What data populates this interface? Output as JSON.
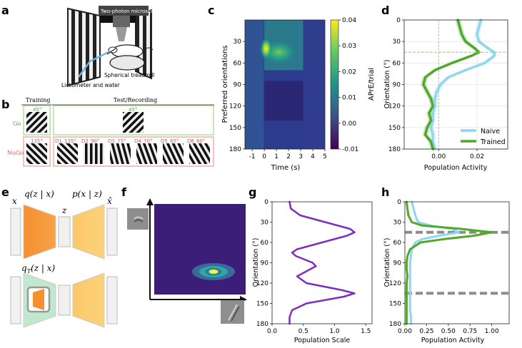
{
  "panel_labels": {
    "a": "a",
    "b": "b",
    "c": "c",
    "d": "d",
    "e": "e",
    "f": "f",
    "g": "g",
    "h": "h"
  },
  "panel_a": {
    "microscope_label": "Two-photon microscope",
    "lickometer_label": "Lickometer and water",
    "treadmill_label": "Spherical treadmill"
  },
  "panel_b": {
    "training_label": "Training",
    "test_label": "Test/Recording",
    "go_label": "Go",
    "nogo_label": "NoGo",
    "go_training_angle": "45°",
    "go_test_angle": "45°",
    "nogo_training_angle": "135°",
    "nogo_tests": [
      {
        "name": "D1",
        "angle": "135°"
      },
      {
        "name": "D2",
        "angle": "90°"
      },
      {
        "name": "D3",
        "angle": "75°"
      },
      {
        "name": "D4",
        "angle": "70°"
      },
      {
        "name": "D5",
        "angle": "65°"
      },
      {
        "name": "D6",
        "angle": "60°"
      }
    ]
  },
  "panel_e": {
    "x_label": "x",
    "z_label": "z",
    "xhat_label": "x̂",
    "encoder_label": "q(z | x)",
    "decoder_label": "p(x | z)",
    "task_encoder_label": "q",
    "task_encoder_sub": "T",
    "task_encoder_rest": "(z | x)"
  },
  "chart_data": [
    {
      "id": "c",
      "type": "heatmap",
      "xlabel": "Time (s)",
      "ylabel": "Preferred orientations",
      "colorbar_label": "APrE/trial",
      "xlim": [
        -1.6,
        5
      ],
      "ylim": [
        0,
        180
      ],
      "xticks": [
        -1,
        0,
        1,
        2,
        3,
        4,
        5
      ],
      "xtick_labels": [
        "-1",
        "0",
        "1",
        "2",
        "3",
        "4",
        "5"
      ],
      "yticks": [
        30,
        60,
        90,
        120,
        150,
        180
      ],
      "ytick_labels": [
        "30",
        "60",
        "90",
        "120",
        "150",
        "180"
      ],
      "clim": [
        -0.01,
        0.04
      ],
      "cticks": [
        -0.01,
        0.0,
        0.01,
        0.02,
        0.03,
        0.04
      ],
      "ctick_labels": [
        "-0.01",
        "0.00",
        "0.01",
        "0.02",
        "0.03",
        "0.04"
      ],
      "colormap": "viridis",
      "hotspot": {
        "time": 0.15,
        "orientation": 40,
        "value": 0.04
      }
    },
    {
      "id": "d",
      "type": "line",
      "xlabel": "Population Activity",
      "ylabel": "Orientation (°)",
      "xlim": [
        -0.018,
        0.036
      ],
      "ylim": [
        0,
        180
      ],
      "xticks": [
        0.0,
        0.02
      ],
      "xtick_labels": [
        "0.00",
        "0.02"
      ],
      "yticks": [
        0,
        30,
        60,
        90,
        120,
        150,
        180
      ],
      "ytick_labels": [
        "0",
        "30",
        "60",
        "90",
        "120",
        "150",
        "180"
      ],
      "hline": 45,
      "vline": 0,
      "legend_position": "bottom-right",
      "series": [
        {
          "name": "Naive",
          "color": "#8fd6ee",
          "y": [
            0,
            10,
            20,
            30,
            40,
            45,
            50,
            60,
            70,
            80,
            90,
            100,
            110,
            120,
            130,
            140,
            150,
            160,
            170,
            180
          ],
          "x": [
            0.022,
            0.021,
            0.02,
            0.021,
            0.026,
            0.029,
            0.029,
            0.024,
            0.014,
            0.005,
            0.001,
            -0.001,
            -0.002,
            -0.002,
            -0.003,
            -0.003,
            -0.004,
            -0.003,
            -0.003,
            -0.002
          ]
        },
        {
          "name": "Trained",
          "color": "#52a82a",
          "y": [
            0,
            10,
            20,
            30,
            40,
            45,
            50,
            60,
            70,
            80,
            90,
            100,
            110,
            120,
            130,
            140,
            150,
            160,
            170,
            180
          ],
          "x": [
            0.01,
            0.011,
            0.012,
            0.014,
            0.019,
            0.021,
            0.017,
            0.007,
            -0.002,
            -0.007,
            -0.008,
            -0.006,
            -0.004,
            -0.003,
            -0.005,
            -0.004,
            -0.006,
            -0.007,
            -0.004,
            -0.003
          ]
        }
      ]
    },
    {
      "id": "f",
      "type": "scatter",
      "description_marks": "latent density ellipse",
      "peak": {
        "x": 0.8,
        "y": 0.22
      }
    },
    {
      "id": "g",
      "type": "line",
      "xlabel": "Population Scale",
      "ylabel": "Orientation (°)",
      "xlim": [
        0,
        1.6
      ],
      "ylim": [
        0,
        180
      ],
      "xticks": [
        0.0,
        0.5,
        1.0,
        1.5
      ],
      "xtick_labels": [
        "0.0",
        "0.5",
        "1.0",
        "1.5"
      ],
      "yticks": [
        0,
        30,
        60,
        90,
        120,
        150,
        180
      ],
      "ytick_labels": [
        "0",
        "30",
        "60",
        "90",
        "120",
        "150",
        "180"
      ],
      "series": [
        {
          "name": "Scale",
          "color": "#7b2fbe",
          "y": [
            0,
            10,
            20,
            30,
            40,
            45,
            50,
            60,
            70,
            75,
            80,
            90,
            95,
            100,
            110,
            120,
            130,
            135,
            140,
            150,
            160,
            170,
            180
          ],
          "x": [
            0.28,
            0.3,
            0.45,
            0.85,
            1.25,
            1.32,
            1.2,
            0.8,
            0.4,
            0.32,
            0.38,
            0.65,
            0.7,
            0.6,
            0.4,
            0.55,
            1.1,
            1.32,
            1.15,
            0.55,
            0.32,
            0.28,
            0.28
          ]
        }
      ]
    },
    {
      "id": "h",
      "type": "line",
      "xlabel": "Population Activity",
      "ylabel": "Orientation (°)",
      "xlim": [
        0,
        1.2
      ],
      "ylim": [
        0,
        180
      ],
      "xticks": [
        0.0,
        0.25,
        0.5,
        0.75,
        1.0
      ],
      "xtick_labels": [
        "0.00",
        "0.25",
        "0.50",
        "0.75",
        "1.00"
      ],
      "yticks": [
        0,
        30,
        60,
        90,
        120,
        150,
        180
      ],
      "ytick_labels": [
        "0",
        "30",
        "60",
        "90",
        "120",
        "150",
        "180"
      ],
      "dashed_hlines": [
        45,
        135
      ],
      "series": [
        {
          "name": "Naive",
          "color": "#8fd6ee",
          "y": [
            0,
            10,
            20,
            30,
            35,
            40,
            45,
            50,
            55,
            60,
            70,
            80,
            90,
            100,
            110,
            120,
            130,
            140,
            150,
            160,
            170,
            180
          ],
          "x": [
            0.08,
            0.1,
            0.12,
            0.15,
            0.3,
            0.55,
            0.62,
            0.4,
            0.2,
            0.12,
            0.08,
            0.07,
            0.06,
            0.06,
            0.06,
            0.06,
            0.06,
            0.06,
            0.06,
            0.06,
            0.07,
            0.07
          ]
        },
        {
          "name": "Trained",
          "color": "#52a82a",
          "y": [
            0,
            10,
            20,
            30,
            35,
            40,
            45,
            50,
            55,
            60,
            70,
            80,
            90,
            100,
            110,
            120,
            130,
            140,
            150,
            160,
            170,
            180
          ],
          "x": [
            0.02,
            0.03,
            0.04,
            0.08,
            0.2,
            0.65,
            1.0,
            0.8,
            0.45,
            0.18,
            0.06,
            0.03,
            0.02,
            0.02,
            0.03,
            0.02,
            0.02,
            0.02,
            0.02,
            0.02,
            0.02,
            0.02
          ]
        }
      ]
    }
  ]
}
